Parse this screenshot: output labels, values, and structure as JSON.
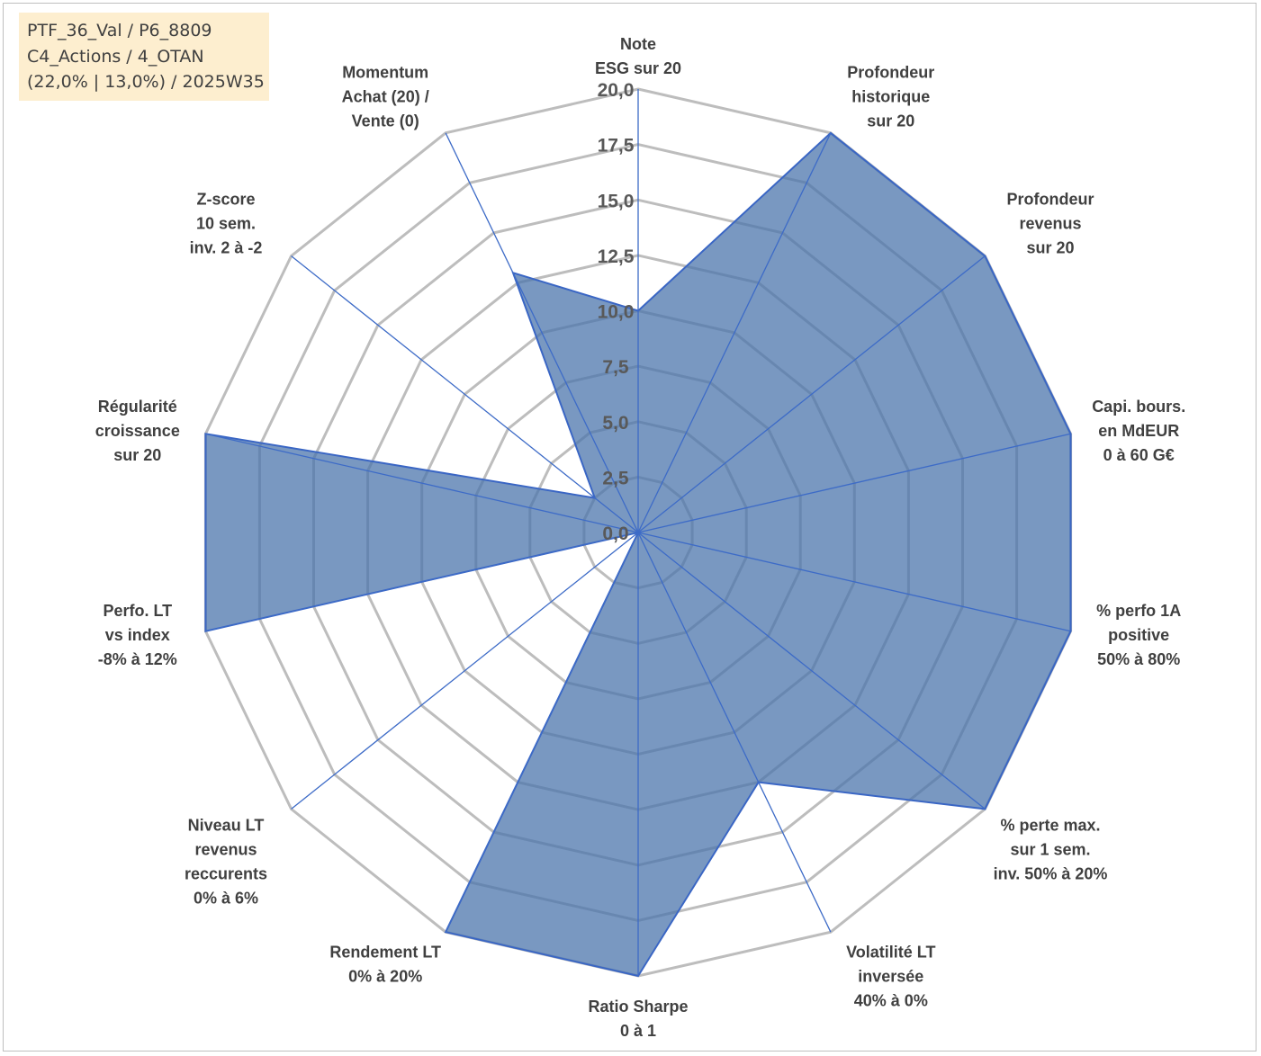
{
  "info_box": {
    "line1": "PTF_36_Val / P6_8809",
    "line2": "C4_Actions / 4_OTAN",
    "line3": "(22,0% | 13,0%) / 2025W35"
  },
  "colors": {
    "series_fill": "#4a74ab",
    "series_line": "#3a66c4",
    "grid": "#bdbdbd",
    "info_box_bg": "#fdeecf"
  },
  "chart_data": {
    "type": "radar",
    "rmin": 0,
    "rmax": 20,
    "tick_labels": [
      "0,0",
      "2,5",
      "5,0",
      "7,5",
      "10,0",
      "12,5",
      "15,0",
      "17,5",
      "20,0"
    ],
    "axes": [
      [
        "Note",
        "ESG sur 20"
      ],
      [
        "Profondeur",
        "historique",
        "sur 20"
      ],
      [
        "Profondeur",
        "revenus",
        "sur 20"
      ],
      [
        "Capi. bours.",
        "en MdEUR",
        "0 à 60 G€"
      ],
      [
        "% perfo 1A",
        "positive",
        "50% à 80%"
      ],
      [
        "% perte max.",
        "sur 1 sem.",
        "inv. 50% à 20%"
      ],
      [
        "Volatilité LT",
        "inversée",
        "40% à 0%"
      ],
      [
        "Ratio Sharpe",
        "0 à 1"
      ],
      [
        "Rendement LT",
        "0% à 20%"
      ],
      [
        "Niveau LT",
        "revenus",
        "reccurents",
        "0% à 6%"
      ],
      [
        "Perfo. LT",
        "vs index",
        "-8% à 12%"
      ],
      [
        "Régularité",
        "croissance",
        "sur 20"
      ],
      [
        "Z-score",
        "10 sem.",
        "inv. 2 à -2"
      ],
      [
        "Momentum",
        "Achat (20) /",
        "Vente (0)"
      ]
    ],
    "series": [
      {
        "values": [
          10,
          20,
          20,
          20,
          20,
          20,
          12.5,
          20,
          20,
          0,
          20,
          20,
          2.5,
          13
        ]
      }
    ],
    "grid": true,
    "legend": "none"
  }
}
